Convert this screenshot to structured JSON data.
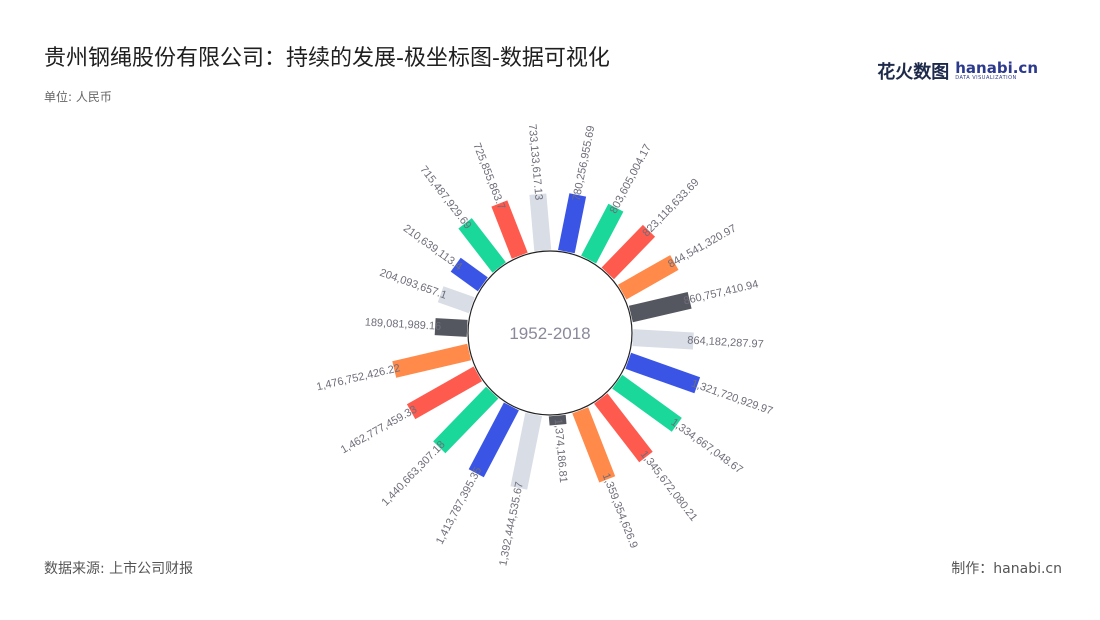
{
  "title": "贵州钢绳股份有限公司：持续的发展-极坐标图-数据可视化",
  "unit": "单位: 人民币",
  "logo": {
    "cn": "花火数图",
    "en": "hanabi.cn",
    "tagline": "DATA VISUALIZATION"
  },
  "footer": {
    "source": "数据来源: 上市公司财报",
    "maker": "制作：hanabi.cn"
  },
  "chart_data": {
    "type": "bar",
    "subtype": "polar-radial-bar",
    "center_label": "1952-2018",
    "values": [
      733133617.13,
      780256955.69,
      803605004.17,
      823118633.69,
      844541320.97,
      860757410.94,
      864182287.97,
      1321720929.97,
      1334667048.67,
      1345672080.21,
      1359354626.9,
      1374186.81,
      1392444535.67,
      1413787395.35,
      1440663307.18,
      1462777459.33,
      1476752426.22,
      189081989.16,
      204093657.1,
      210639113.4,
      715487929.69,
      725855863.7
    ],
    "labels": [
      "733,133,617.13",
      "780,256,955.69",
      "803,605,004.17",
      "823,118,633.69",
      "844,541,320.97",
      "860,757,410.94",
      "864,182,287.97",
      "1,321,720,929.97",
      "1,334,667,048.67",
      "1,345,672,080.21",
      "1,359,354,626.9",
      "1,374,186.81",
      "1,392,444,535.67",
      "1,413,787,395.35",
      "1,440,663,307.18",
      "1,462,777,459.33",
      "1,476,752,426.22",
      "189,081,989.16",
      "204,093,657.1",
      "210,639,113.4",
      "715,487,929.69",
      "725,855,863.7"
    ],
    "colors": [
      "#d9dde6",
      "#3a55e6",
      "#19d89a",
      "#ff5a4e",
      "#ff8a4a",
      "#555760"
    ]
  }
}
